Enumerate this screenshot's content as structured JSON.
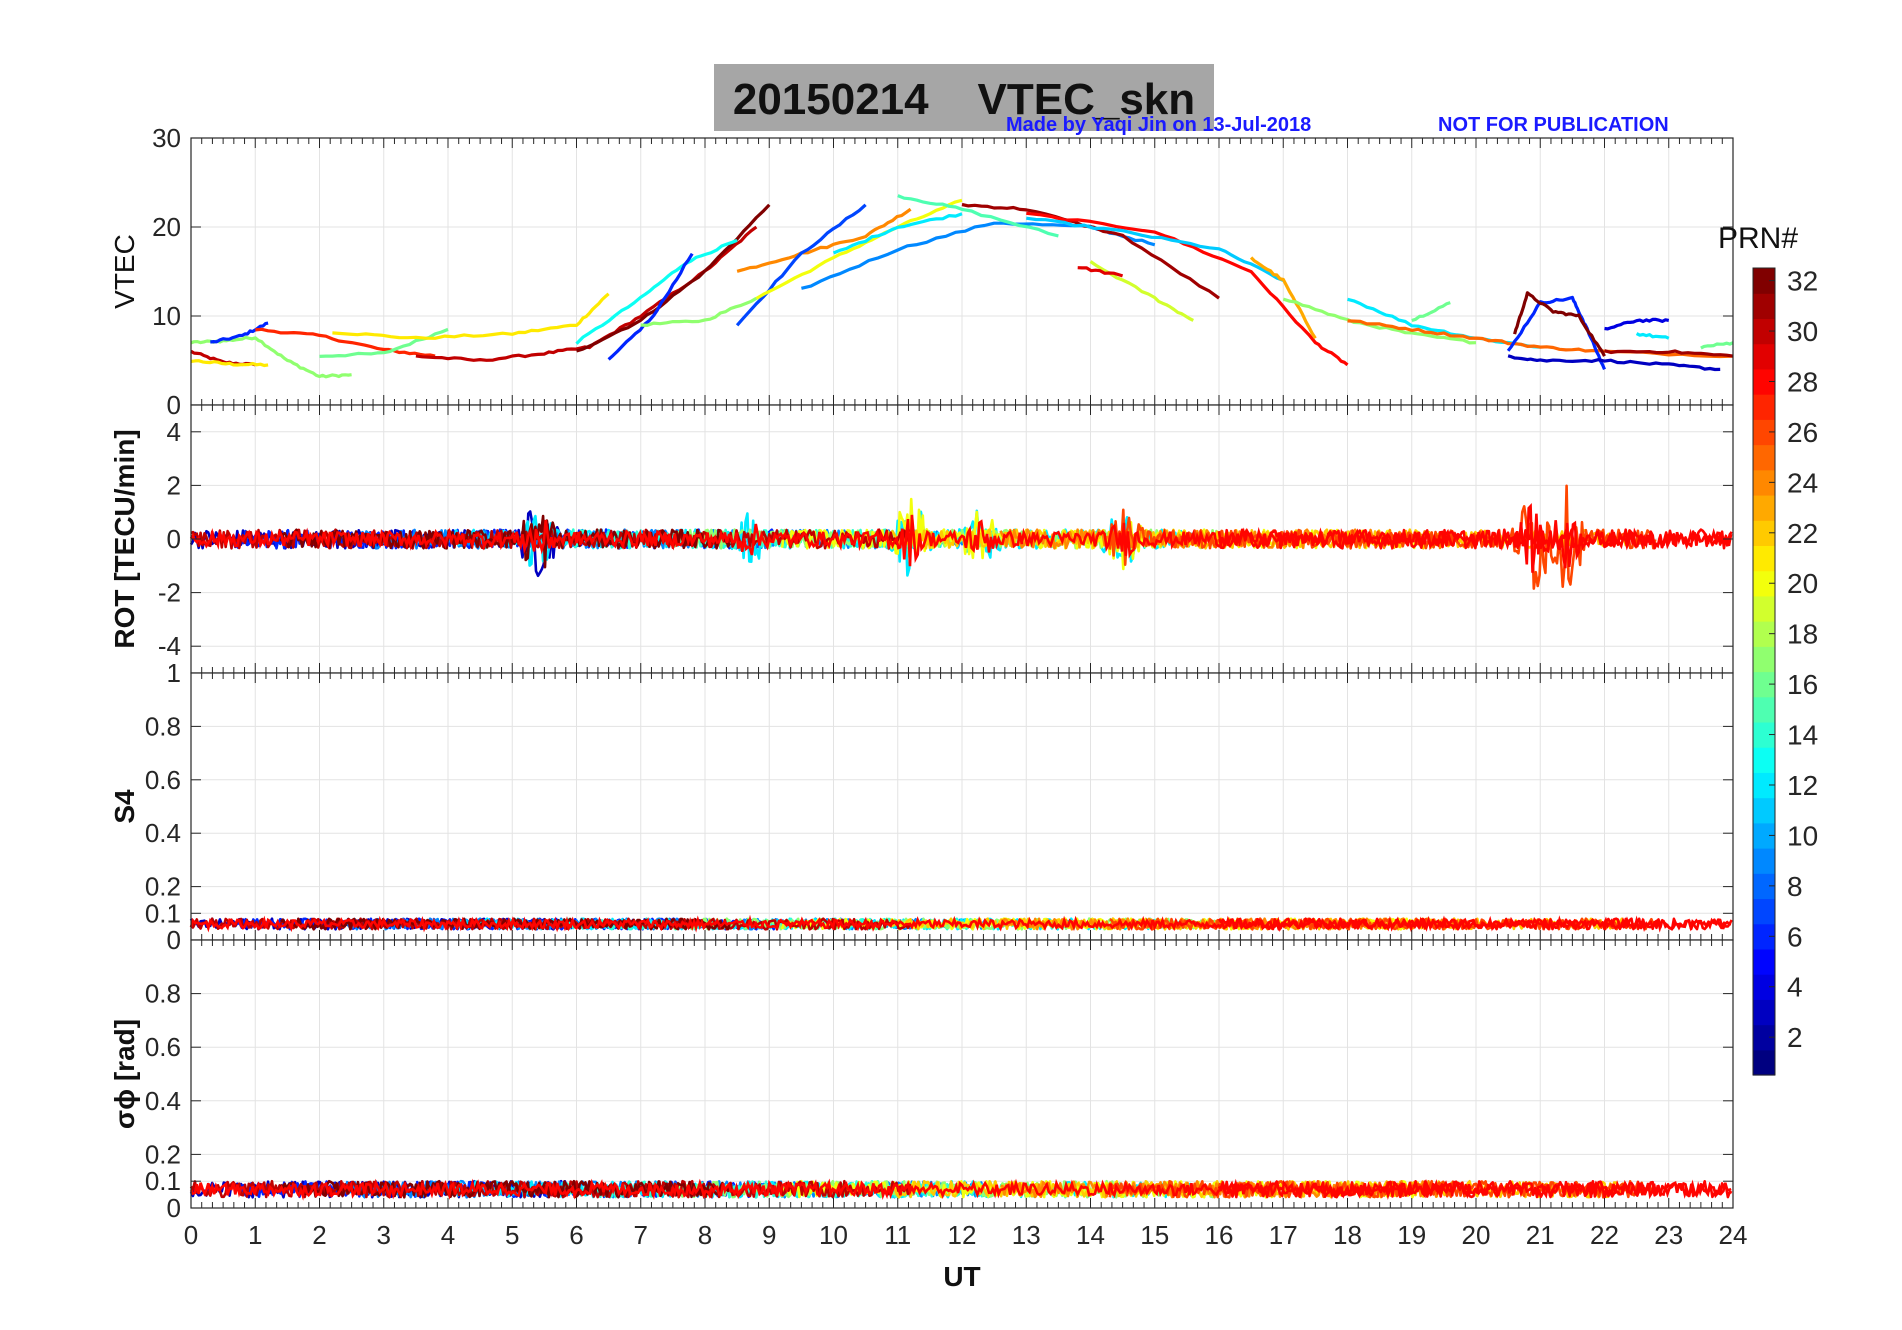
{
  "header": {
    "title": "20150214    VTEC_skn",
    "credit": "Made by Yaqi Jin on 13-Jul-2018",
    "notice": "NOT FOR PUBLICATION"
  },
  "chart_data": [
    {
      "type": "line",
      "panel": "vtec",
      "ylabel": "VTEC",
      "ylim": [
        0,
        30
      ],
      "yticks": [
        "0",
        "10",
        "20",
        "30"
      ],
      "xlim": [
        0,
        24
      ],
      "grid": true,
      "series": [
        {
          "prn": 30,
          "x": [
            0,
            0.5,
            1
          ],
          "y": [
            6,
            4.8,
            4.5
          ]
        },
        {
          "prn": 21,
          "x": [
            0,
            0.6,
            1.2
          ],
          "y": [
            5,
            4.6,
            4.5
          ]
        },
        {
          "prn": 17,
          "x": [
            0,
            0.5,
            1.0,
            1.5,
            2.0,
            2.5
          ],
          "y": [
            7,
            7.2,
            7.6,
            5,
            3.2,
            3.4
          ]
        },
        {
          "prn": 6,
          "x": [
            0.3,
            0.8,
            1.2
          ],
          "y": [
            7,
            7.8,
            9.2
          ]
        },
        {
          "prn": 27,
          "x": [
            1.0,
            2.0,
            3.0,
            3.8
          ],
          "y": [
            8.5,
            7.8,
            6.2,
            5.5
          ]
        },
        {
          "prn": 16,
          "x": [
            2.0,
            3.0,
            4.0
          ],
          "y": [
            5.5,
            5.8,
            8.5
          ]
        },
        {
          "prn": 21,
          "x": [
            2.2,
            3.5,
            5.0,
            6.0,
            6.5
          ],
          "y": [
            8.2,
            7.5,
            8.0,
            9.0,
            12.5
          ]
        },
        {
          "prn": 30,
          "x": [
            3.5,
            4.5,
            5.5,
            6.2,
            7.0,
            8.0,
            8.8
          ],
          "y": [
            5.5,
            5.0,
            5.8,
            6.5,
            10.0,
            15.0,
            20.0
          ]
        },
        {
          "prn": 32,
          "x": [
            6.0,
            7.0,
            8.0,
            9.0
          ],
          "y": [
            6.0,
            9.5,
            15.0,
            22.5
          ]
        },
        {
          "prn": 13,
          "x": [
            6.0,
            7.0,
            7.7,
            8.5
          ],
          "y": [
            7.0,
            12.0,
            16.0,
            18.5
          ]
        },
        {
          "prn": 6,
          "x": [
            6.5,
            7.2,
            7.8
          ],
          "y": [
            5.0,
            10.0,
            17.0
          ]
        },
        {
          "prn": 17,
          "x": [
            7.0,
            8.0,
            8.8
          ],
          "y": [
            9.0,
            9.5,
            12.0
          ]
        },
        {
          "prn": 24,
          "x": [
            8.5,
            9.5,
            10.5,
            11.2
          ],
          "y": [
            15.0,
            17.0,
            19.0,
            22.0
          ]
        },
        {
          "prn": 7,
          "x": [
            8.5,
            9.5,
            10.5
          ],
          "y": [
            9.0,
            17.0,
            22.5
          ]
        },
        {
          "prn": 20,
          "x": [
            8.8,
            10.0,
            11.0,
            12.0
          ],
          "y": [
            12.0,
            16.5,
            20.0,
            23.0
          ]
        },
        {
          "prn": 9,
          "x": [
            9.5,
            11.0,
            12.5,
            14.0,
            15.0
          ],
          "y": [
            13.0,
            17.5,
            20.5,
            20.0,
            18.0
          ]
        },
        {
          "prn": 12,
          "x": [
            10.0,
            11.0,
            12.0
          ],
          "y": [
            17.0,
            20.0,
            21.5
          ]
        },
        {
          "prn": 15,
          "x": [
            11.0,
            12.0,
            13.5
          ],
          "y": [
            23.5,
            22.0,
            19.0
          ]
        },
        {
          "prn": 31,
          "x": [
            12.0,
            13.0,
            14.5,
            16.0
          ],
          "y": [
            22.5,
            22.0,
            19.0,
            12.0
          ]
        },
        {
          "prn": 28,
          "x": [
            13.0,
            15.0,
            16.5,
            17.5,
            18.0
          ],
          "y": [
            21.5,
            19.5,
            15.0,
            7.0,
            4.5
          ]
        },
        {
          "prn": 11,
          "x": [
            13.0,
            14.5,
            16.0,
            17.0
          ],
          "y": [
            21.0,
            19.5,
            17.5,
            14.0
          ]
        },
        {
          "prn": 19,
          "x": [
            14.0,
            15.0,
            15.6
          ],
          "y": [
            16.0,
            12.0,
            9.5
          ]
        },
        {
          "prn": 29,
          "x": [
            13.8,
            14.5
          ],
          "y": [
            15.5,
            14.5
          ]
        },
        {
          "prn": 23,
          "x": [
            16.5,
            17.0,
            17.5
          ],
          "y": [
            16.5,
            14.0,
            7.5
          ]
        },
        {
          "prn": 17,
          "x": [
            17.0,
            18.0,
            19.0,
            20.0
          ],
          "y": [
            12.0,
            9.5,
            8.0,
            7.0
          ]
        },
        {
          "prn": 12,
          "x": [
            18.0,
            19.0,
            20.0,
            21.0
          ],
          "y": [
            12.0,
            9.0,
            7.5,
            6.5
          ]
        },
        {
          "prn": 25,
          "x": [
            18.0,
            19.0,
            20.0,
            21.0,
            22.0,
            24.0
          ],
          "y": [
            9.5,
            8.5,
            7.5,
            6.5,
            6.0,
            5.5
          ]
        },
        {
          "prn": 16,
          "x": [
            19.0,
            19.6
          ],
          "y": [
            9.5,
            11.5
          ]
        },
        {
          "prn": 6,
          "x": [
            20.5,
            21.0,
            21.5,
            21.7,
            22.0
          ],
          "y": [
            6.0,
            11.5,
            12.0,
            9.0,
            4.0
          ]
        },
        {
          "prn": 32,
          "x": [
            20.6,
            20.8,
            21.2,
            21.6,
            22.0
          ],
          "y": [
            8.0,
            12.5,
            10.5,
            10.0,
            5.5
          ]
        },
        {
          "prn": 3,
          "x": [
            20.5,
            21.0,
            22.0,
            23.0,
            23.8
          ],
          "y": [
            5.5,
            5.0,
            5.0,
            4.5,
            4.0
          ]
        },
        {
          "prn": 12,
          "x": [
            22.5,
            23.0
          ],
          "y": [
            8.0,
            7.5
          ]
        },
        {
          "prn": 4,
          "x": [
            22.0,
            22.5,
            23.0
          ],
          "y": [
            8.5,
            9.5,
            9.5
          ]
        },
        {
          "prn": 31,
          "x": [
            22.0,
            23.0,
            24.0
          ],
          "y": [
            6.0,
            6.0,
            5.5
          ]
        },
        {
          "prn": 16,
          "x": [
            23.5,
            24.0
          ],
          "y": [
            6.5,
            7.0
          ]
        }
      ]
    },
    {
      "type": "line",
      "panel": "rot",
      "ylabel": "ROT [TECU/min]",
      "ylim": [
        -5,
        5
      ],
      "yticks": [
        "-4",
        "-2",
        "0",
        "2",
        "4"
      ],
      "xlim": [
        0,
        24
      ],
      "grid": true,
      "baseline": 0,
      "amplitude": 0.35,
      "bursts": [
        {
          "x": 5.4,
          "amp": 1.2
        },
        {
          "x": 8.7,
          "amp": 0.7
        },
        {
          "x": 11.2,
          "amp": 1.3
        },
        {
          "x": 12.3,
          "amp": 0.9
        },
        {
          "x": 14.5,
          "amp": 0.8
        },
        {
          "x": 20.9,
          "amp": 2.0
        },
        {
          "x": 21.4,
          "amp": 1.7
        }
      ]
    },
    {
      "type": "line",
      "panel": "s4",
      "ylabel": "S4",
      "ylim": [
        0,
        1
      ],
      "yticks": [
        "0",
        "0.1",
        "0.2",
        "0.4",
        "0.6",
        "0.8",
        "1"
      ],
      "xlim": [
        0,
        24
      ],
      "grid": true,
      "baseline": 0.06,
      "amplitude": 0.02
    },
    {
      "type": "line",
      "panel": "sigma",
      "ylabel": "σϕ [rad]",
      "ylim": [
        0,
        1
      ],
      "yticks": [
        "0",
        "0.1",
        "0.2",
        "0.4",
        "0.6",
        "0.8"
      ],
      "xlim": [
        0,
        24
      ],
      "xticks": [
        "0",
        "1",
        "2",
        "3",
        "4",
        "5",
        "6",
        "7",
        "8",
        "9",
        "10",
        "11",
        "12",
        "13",
        "14",
        "15",
        "16",
        "17",
        "18",
        "19",
        "20",
        "21",
        "22",
        "23",
        "24"
      ],
      "xlabel": "UT",
      "grid": true,
      "baseline": 0.07,
      "amplitude": 0.03
    }
  ],
  "colorbar": {
    "title": "PRN#",
    "range": [
      1,
      32
    ],
    "ticks": [
      "2",
      "4",
      "6",
      "8",
      "10",
      "12",
      "14",
      "16",
      "18",
      "20",
      "22",
      "24",
      "26",
      "28",
      "30",
      "32"
    ],
    "colormap": "jet"
  }
}
